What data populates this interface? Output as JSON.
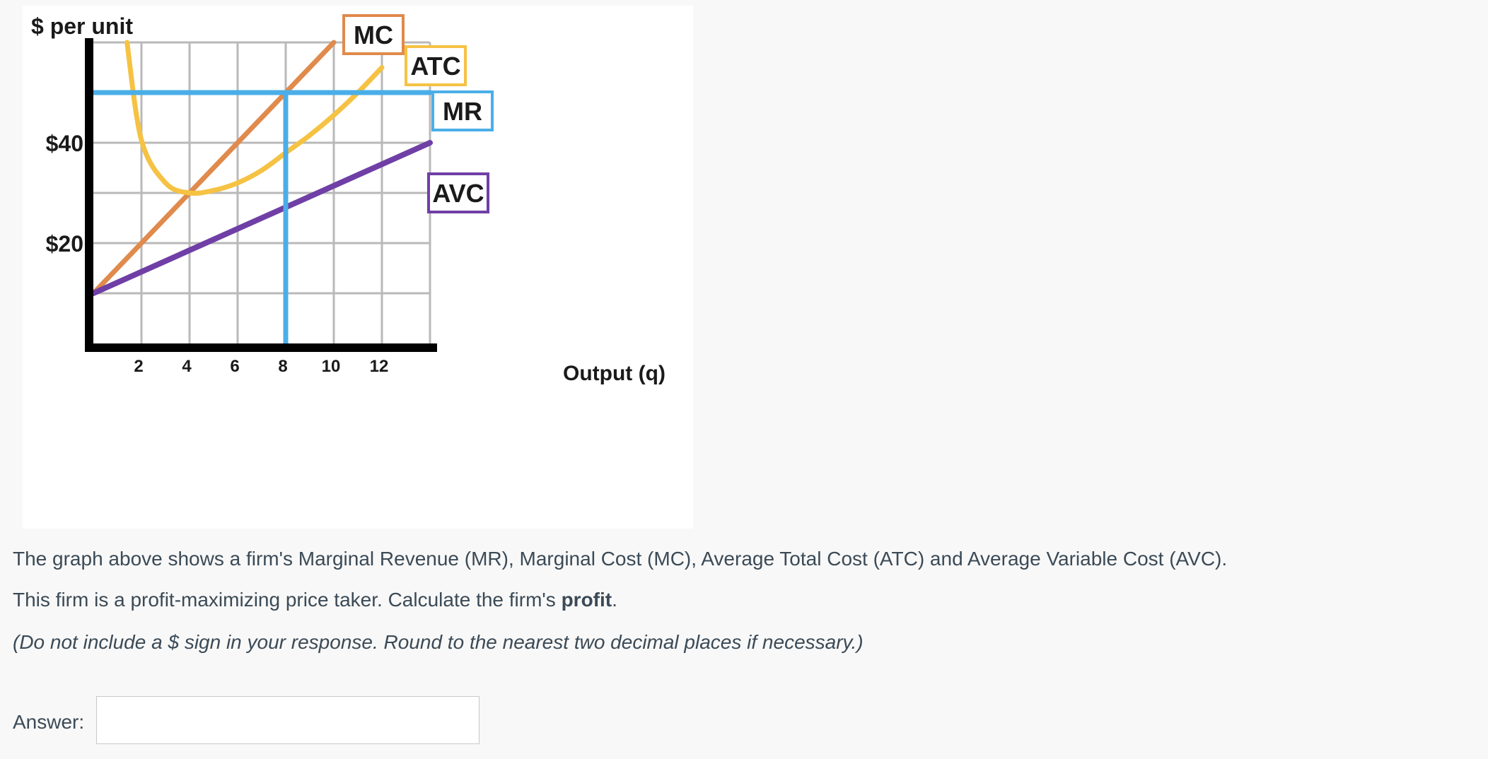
{
  "chart_data": {
    "type": "line",
    "ylabel": "$ per unit",
    "xlabel": "Output (q)",
    "x_ticks": [
      2,
      4,
      6,
      8,
      10,
      12
    ],
    "x_tick_labels": [
      "2",
      "4",
      "6",
      "8",
      "10",
      "12"
    ],
    "y_ticks": [
      20,
      40
    ],
    "y_tick_labels": [
      "$20",
      "$40"
    ],
    "xlim": [
      0,
      14
    ],
    "ylim": [
      0,
      60
    ],
    "grid": true,
    "legend": "labels beside curves at right",
    "series": [
      {
        "name": "MC",
        "color": "#e08a4c",
        "x": [
          0,
          10
        ],
        "y": [
          10,
          60
        ]
      },
      {
        "name": "ATC",
        "color": "#f5c243",
        "x": [
          1.4,
          2,
          3,
          4,
          5,
          6,
          7,
          8,
          9,
          10,
          11,
          12
        ],
        "y": [
          60,
          40.5,
          32,
          30,
          30.5,
          32,
          34.5,
          38,
          41.5,
          45.5,
          50,
          55
        ]
      },
      {
        "name": "MR",
        "color": "#4aaee8",
        "x": [
          0,
          14
        ],
        "y": [
          50,
          50
        ]
      },
      {
        "name": "AVC",
        "color": "#6f3fa6",
        "x": [
          0,
          14
        ],
        "y": [
          10,
          40
        ]
      }
    ],
    "reference_lines": [
      {
        "series": "MR",
        "orientation": "vertical",
        "x": 8,
        "y_from": 0,
        "y_to": 50
      }
    ]
  },
  "question": {
    "line1": "The graph above shows a firm's Marginal Revenue (MR), Marginal Cost (MC), Average Total Cost (ATC) and Average Variable Cost (AVC).",
    "line2_prefix": "This firm is a profit-maximizing price taker. Calculate the firm's ",
    "line2_bold": "profit",
    "line2_suffix": ".",
    "line3": "(Do not include a $ sign in your response. Round to the nearest two decimal places if necessary.)"
  },
  "answer": {
    "label": "Answer:",
    "value": "",
    "placeholder": ""
  }
}
